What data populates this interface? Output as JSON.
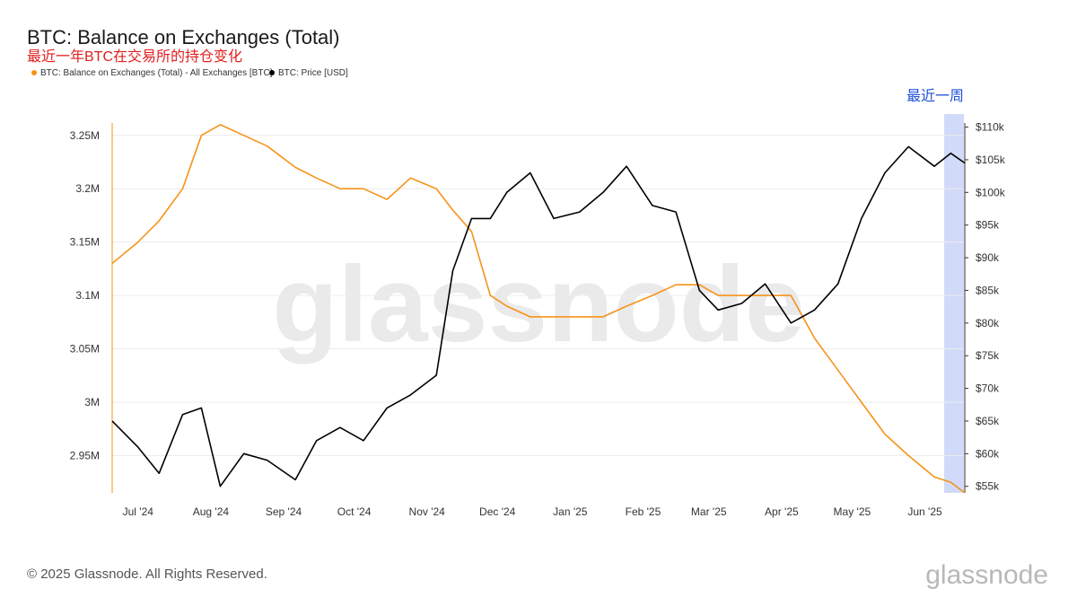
{
  "header": {
    "title": "BTC: Balance on Exchanges (Total)",
    "subtitle": "最近一年BTC在交易所的持仓变化"
  },
  "highlight": {
    "label": "最近一周"
  },
  "watermark": {
    "text": "glassnode"
  },
  "footer": {
    "copyright": "© 2025 Glassnode. All Rights Reserved.",
    "logo": "glassnode"
  },
  "colors": {
    "balance": "#f7931a",
    "price": "#000000",
    "highlight": "#c9d3f7",
    "grid": "#ececec",
    "axis": "#f7931a"
  },
  "chart_data": {
    "type": "line",
    "title": "BTC: Balance on Exchanges (Total)",
    "legend_position": "top-left",
    "grid": true,
    "x_ticks": [
      "Jul '24",
      "Aug '24",
      "Sep '24",
      "Oct '24",
      "Nov '24",
      "Dec '24",
      "Jan '25",
      "Feb '25",
      "Mar '25",
      "Apr '25",
      "May '25",
      "Jun '25"
    ],
    "x": [
      "2024-06-20",
      "2024-07-01",
      "2024-07-10",
      "2024-07-20",
      "2024-07-28",
      "2024-08-05",
      "2024-08-15",
      "2024-08-25",
      "2024-09-06",
      "2024-09-15",
      "2024-09-25",
      "2024-10-05",
      "2024-10-15",
      "2024-10-25",
      "2024-11-05",
      "2024-11-12",
      "2024-11-20",
      "2024-11-28",
      "2024-12-05",
      "2024-12-15",
      "2024-12-25",
      "2025-01-05",
      "2025-01-15",
      "2025-01-25",
      "2025-02-05",
      "2025-02-15",
      "2025-02-25",
      "2025-03-05",
      "2025-03-15",
      "2025-03-25",
      "2025-04-05",
      "2025-04-15",
      "2025-04-25",
      "2025-05-05",
      "2025-05-15",
      "2025-05-25",
      "2025-06-05",
      "2025-06-12",
      "2025-06-18"
    ],
    "y_left": {
      "label": "",
      "ticks": [
        "2.95M",
        "3M",
        "3.05M",
        "3.1M",
        "3.15M",
        "3.2M",
        "3.25M"
      ],
      "ylim": [
        2.915,
        3.27
      ]
    },
    "y_right": {
      "label": "",
      "ticks": [
        "$55k",
        "$60k",
        "$65k",
        "$70k",
        "$75k",
        "$80k",
        "$85k",
        "$90k",
        "$95k",
        "$100k",
        "$105k",
        "$110k"
      ],
      "ylim": [
        54,
        112
      ]
    },
    "series": [
      {
        "name": "BTC: Balance on Exchanges (Total) - All Exchanges [BTC]",
        "axis": "left",
        "values": [
          3.13,
          3.15,
          3.17,
          3.2,
          3.25,
          3.26,
          3.25,
          3.24,
          3.22,
          3.21,
          3.2,
          3.2,
          3.19,
          3.21,
          3.2,
          3.18,
          3.16,
          3.1,
          3.09,
          3.08,
          3.08,
          3.08,
          3.08,
          3.09,
          3.1,
          3.11,
          3.11,
          3.1,
          3.1,
          3.1,
          3.1,
          3.06,
          3.03,
          3.0,
          2.97,
          2.95,
          2.93,
          2.925,
          2.915
        ]
      },
      {
        "name": "BTC: Price [USD]",
        "axis": "right",
        "values": [
          65,
          61,
          57,
          66,
          67,
          55,
          60,
          59,
          56,
          62,
          64,
          62,
          67,
          69,
          72,
          88,
          96,
          96,
          100,
          103,
          96,
          97,
          100,
          104,
          98,
          97,
          85,
          82,
          83,
          86,
          80,
          82,
          86,
          96,
          103,
          107,
          104,
          106,
          104.5
        ]
      }
    ],
    "annotations": [
      {
        "text": "最近一周",
        "range": [
          "2025-06-11",
          "2025-06-18"
        ]
      }
    ]
  }
}
